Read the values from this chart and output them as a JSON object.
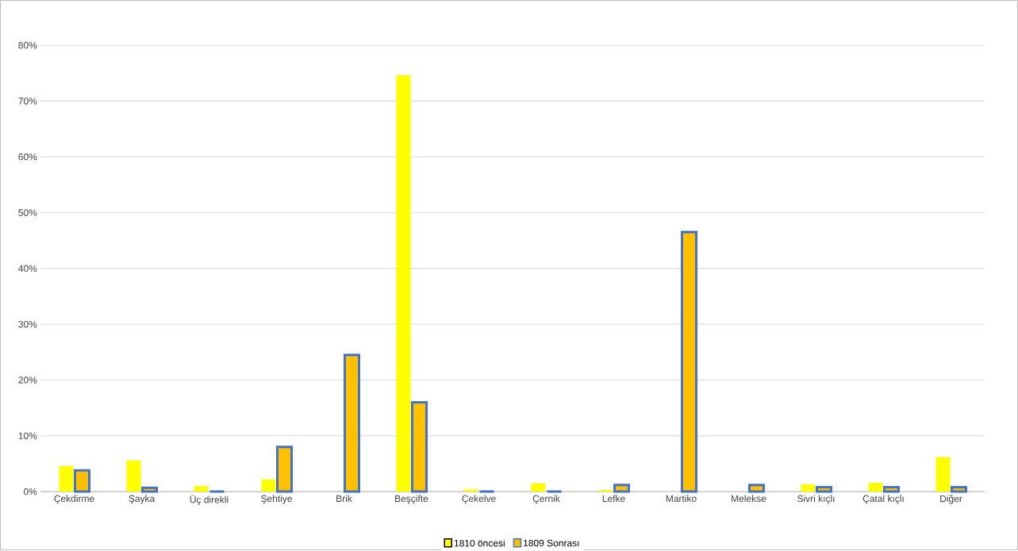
{
  "chart_data": {
    "type": "bar",
    "categories": [
      "Çekdirme",
      "Şayka",
      "Üç direkli",
      "Şehtiye",
      "Brik",
      "Beşçifte",
      "Çekelve",
      "Çernik",
      "Lefke",
      "Martiko",
      "Melekse",
      "Sivri kıçlı",
      "Çatal kıçlı",
      "Diğer"
    ],
    "series": [
      {
        "name": "1810 öncesi",
        "color": "#ffff00",
        "values": [
          4.6,
          5.6,
          1.0,
          2.2,
          0,
          74.6,
          0.4,
          1.5,
          0.3,
          0,
          0,
          1.3,
          1.6,
          6.2
        ]
      },
      {
        "name": "1809 Sonrası",
        "color": "#4472c4",
        "values": [
          3.8,
          0.7,
          0,
          8.0,
          24.5,
          16.0,
          0,
          0,
          1.2,
          46.5,
          1.2,
          0.8,
          0.8,
          0.8
        ]
      }
    ],
    "ylim": [
      0,
      80
    ],
    "yticks": [
      {
        "value": 0,
        "label": "0%"
      },
      {
        "value": 10,
        "label": "10%"
      },
      {
        "value": 20,
        "label": "20%"
      },
      {
        "value": 30,
        "label": "30%"
      },
      {
        "value": 40,
        "label": "40%"
      },
      {
        "value": 50,
        "label": "50%"
      },
      {
        "value": 60,
        "label": "60%"
      },
      {
        "value": 70,
        "label": "70%"
      },
      {
        "value": 80,
        "label": "80%"
      }
    ],
    "grid": "y",
    "legend": "bottom"
  }
}
